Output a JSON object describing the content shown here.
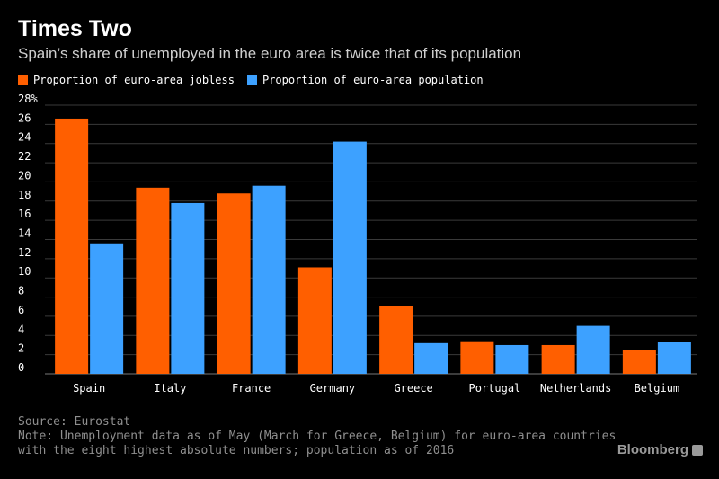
{
  "title": "Times Two",
  "subtitle": "Spain’s share of unemployed in the euro area is twice that of its population",
  "source": "Source: Eurostat",
  "note_line1": "Note: Unemployment data as of May (March for Greece, Belgium) for euro-area countries",
  "note_line2": "with the eight highest absolute numbers; population as of 2016",
  "brand": "Bloomberg",
  "colors": {
    "jobless": "#ff5f00",
    "population": "#3da1ff",
    "grid": "#3a3a3a",
    "background": "#000000"
  },
  "chart_data": {
    "type": "bar",
    "title": "Times Two",
    "subtitle": "Spain’s share of unemployed in the euro area is twice that of its population",
    "categories": [
      "Spain",
      "Italy",
      "France",
      "Germany",
      "Greece",
      "Portugal",
      "Netherlands",
      "Belgium"
    ],
    "series": [
      {
        "name": "Proportion of euro-area jobless",
        "values": [
          26.6,
          19.4,
          18.8,
          11.1,
          7.1,
          3.4,
          3.0,
          2.5
        ]
      },
      {
        "name": "Proportion of euro-area population",
        "values": [
          13.6,
          17.8,
          19.6,
          24.2,
          3.2,
          3.0,
          5.0,
          3.3
        ]
      }
    ],
    "ylim": [
      0,
      28
    ],
    "yticks": [
      0,
      2,
      4,
      6,
      8,
      10,
      12,
      14,
      16,
      18,
      20,
      22,
      24,
      26,
      28
    ],
    "ytick_labels": [
      "0",
      "2",
      "4",
      "6",
      "8",
      "10",
      "12",
      "14",
      "16",
      "18",
      "20",
      "22",
      "24",
      "26",
      "28%"
    ],
    "grid": true,
    "legend": "top-left"
  }
}
